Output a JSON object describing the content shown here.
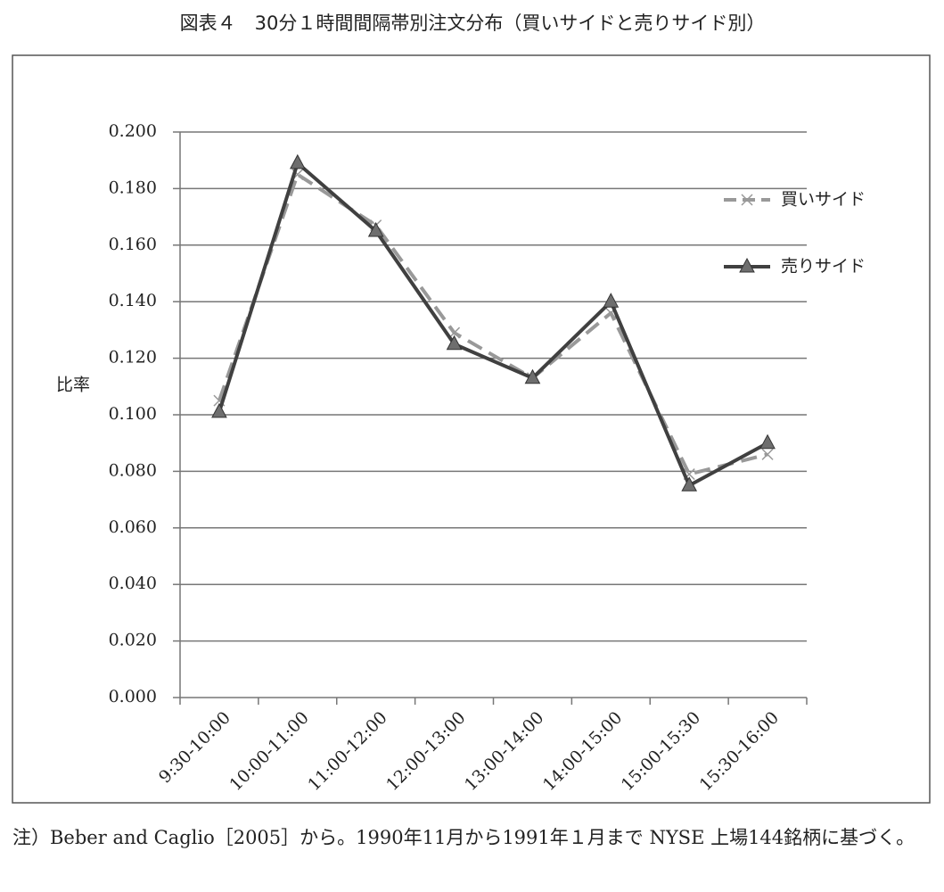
{
  "chart_data": {
    "type": "line",
    "title": "図表４　30分１時間間隔帯別注文分布（買いサイドと売りサイド別）",
    "ylabel": "比率",
    "categories": [
      "9:30-10:00",
      "10:00-11:00",
      "11:00-12:00",
      "12:00-13:00",
      "13:00-14:00",
      "14:00-15:00",
      "15:00-15:30",
      "15:30-16:00"
    ],
    "series": [
      {
        "name": "買いサイド",
        "color": "#999999",
        "marker": "x",
        "dash": true,
        "values": [
          0.105,
          0.185,
          0.167,
          0.129,
          0.113,
          0.136,
          0.079,
          0.086
        ]
      },
      {
        "name": "売りサイド",
        "color": "#404040",
        "marker": "triangle",
        "dash": false,
        "values": [
          0.101,
          0.189,
          0.165,
          0.125,
          0.113,
          0.14,
          0.075,
          0.09
        ]
      }
    ],
    "ylim": [
      0,
      0.2
    ],
    "yticks": [
      {
        "value": 0,
        "label": "0.000"
      },
      {
        "value": 0.02,
        "label": "0.020"
      },
      {
        "value": 0.04,
        "label": "0.040"
      },
      {
        "value": 0.06,
        "label": "0.060"
      },
      {
        "value": 0.08,
        "label": "0.080"
      },
      {
        "value": 0.1,
        "label": "0.100"
      },
      {
        "value": 0.12,
        "label": "0.120"
      },
      {
        "value": 0.14,
        "label": "0.140"
      },
      {
        "value": 0.16,
        "label": "0.160"
      },
      {
        "value": 0.18,
        "label": "0.180"
      },
      {
        "value": 0.2,
        "label": "0.200"
      }
    ],
    "grid": true,
    "legend": "right",
    "note": "注）Beber and Caglio［2005］から。1990年11月から1991年１月まで NYSE 上場144銘柄に基づく。"
  }
}
